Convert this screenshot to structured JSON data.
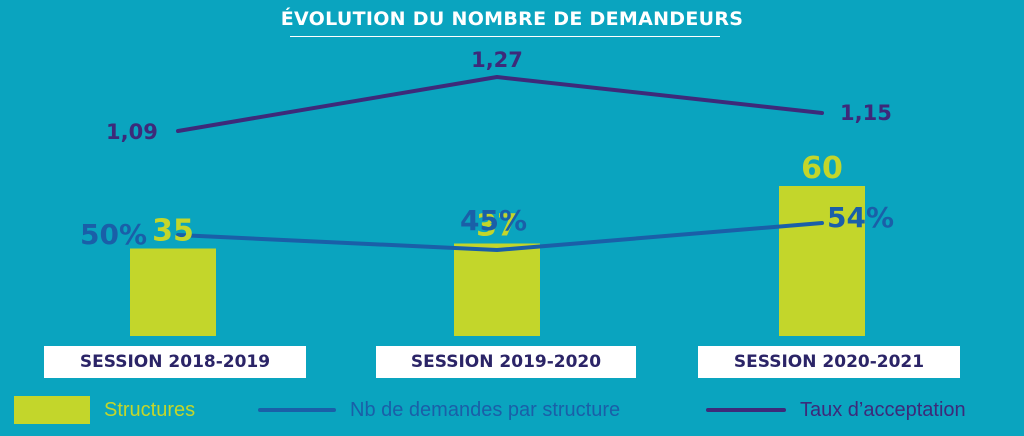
{
  "title": "ÉVOLUTION DU NOMBRE DE DEMANDEURS",
  "colors": {
    "background": "#0aa4bf",
    "structures": "#c3d62b",
    "demandes": "#1a5fa8",
    "taux": "#3d2a7a"
  },
  "chart_data": {
    "type": "bar",
    "title": "ÉVOLUTION DU NOMBRE DE DEMANDEURS",
    "categories": [
      "SESSION 2018-2019",
      "SESSION 2019-2020",
      "SESSION 2020-2021"
    ],
    "series": [
      {
        "name": "Structures",
        "type": "bar",
        "values": [
          35,
          37,
          60
        ],
        "labels": [
          "35",
          "37",
          "60"
        ]
      },
      {
        "name": "Nb de demandes par structure",
        "type": "line",
        "values": [
          50,
          45,
          54
        ],
        "labels": [
          "50%",
          "45%",
          "54%"
        ]
      },
      {
        "name": "Taux d’acceptation",
        "type": "line",
        "values": [
          1.09,
          1.27,
          1.15
        ],
        "labels": [
          "1,09",
          "1,27",
          "1,15"
        ]
      }
    ],
    "grid": false,
    "legend_position": "bottom"
  },
  "legend": {
    "structures": "Structures",
    "demandes": "Nb de demandes par structure",
    "taux": "Taux d’acceptation"
  }
}
